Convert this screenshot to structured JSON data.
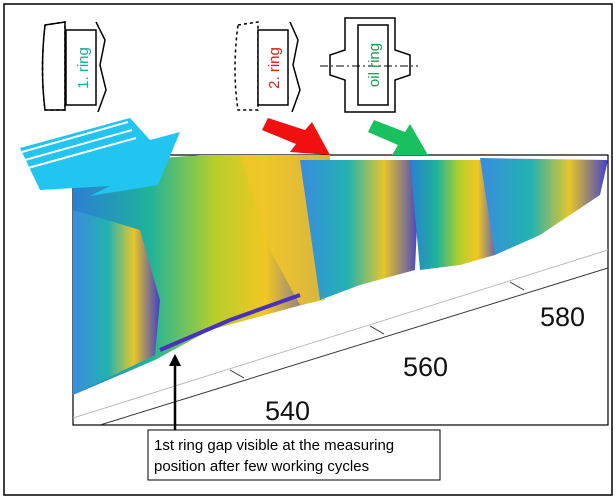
{
  "rings": [
    {
      "label": "1. ring"
    },
    {
      "label": "2. ring"
    },
    {
      "label": "oil ring"
    }
  ],
  "axis": {
    "ticks": [
      540,
      560,
      580
    ]
  },
  "annotation": {
    "lines": [
      "1st ring gap visible at the measuring",
      "position after few working cycles"
    ]
  }
}
